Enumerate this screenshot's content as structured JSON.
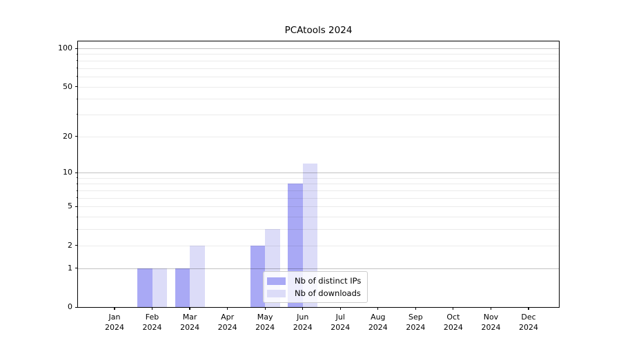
{
  "chart_data": {
    "type": "bar",
    "title": "PCAtools 2024",
    "categories": [
      "Jan",
      "Feb",
      "Mar",
      "Apr",
      "May",
      "Jun",
      "Jul",
      "Aug",
      "Sep",
      "Oct",
      "Nov",
      "Dec"
    ],
    "category_year": "2024",
    "series": [
      {
        "key": "distinct-ips",
        "name": "Nb of distinct IPs",
        "color": "#a9a9f5",
        "values": [
          0,
          1,
          1,
          0,
          2,
          8,
          0,
          0,
          0,
          0,
          0,
          0
        ]
      },
      {
        "key": "downloads",
        "name": "Nb of downloads",
        "color": "#dcdcf8",
        "values": [
          0,
          1,
          2,
          0,
          3,
          12,
          0,
          0,
          0,
          0,
          0,
          0
        ]
      }
    ],
    "yscale": "log1p",
    "ylim": [
      0,
      113
    ],
    "yticks_major": [
      0,
      1,
      2,
      5,
      10,
      20,
      50,
      100
    ],
    "yticks_minor": [
      3,
      4,
      6,
      7,
      8,
      9,
      30,
      40,
      60,
      70,
      80,
      90
    ],
    "gridlines_strong": [
      1,
      10,
      100
    ],
    "gridlines_light": [
      2,
      3,
      4,
      5,
      6,
      7,
      8,
      9,
      20,
      30,
      40,
      50,
      60,
      70,
      80,
      90
    ],
    "grid": true,
    "legend_position": "lower-right-inside",
    "colors": {
      "grid_strong": "rgba(0,0,0,0.24)",
      "grid_light": "rgba(0,0,0,0.08)",
      "axis": "#000000",
      "background": "#ffffff",
      "legend_border": "#cccccc",
      "legend_background": "rgba(255,255,255,0.8)"
    }
  }
}
